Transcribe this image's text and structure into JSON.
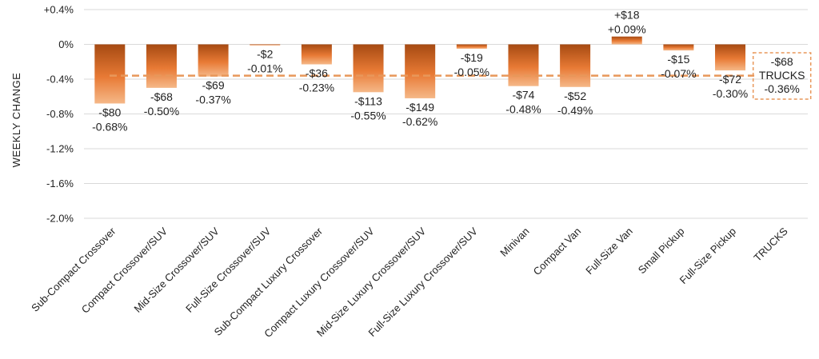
{
  "chart_data": {
    "type": "bar",
    "title": "",
    "xlabel": "",
    "ylabel": "WEEKLY CHANGE",
    "ylim": [
      -2.0,
      0.4
    ],
    "y_ticks": [
      "+0.4%",
      "0%",
      "-0.4%",
      "-0.8%",
      "-1.2%",
      "-1.6%",
      "-2.0%"
    ],
    "grid": true,
    "categories": [
      "Sub-Compact Crossover",
      "Compact Crossover/SUV",
      "Mid-Size Crossover/SUV",
      "Full-Size Crossover/SUV",
      "Sub-Compact Luxury Crossover",
      "Compact Luxury Crossover/SUV",
      "Mid-Size Luxury Crossover/SUV",
      "Full-Size Luxury Crossover/SUV",
      "Minivan",
      "Compact Van",
      "Full-Size Van",
      "Small Pickup",
      "Full-Size Pickup",
      "TRUCKS"
    ],
    "values": [
      -0.68,
      -0.5,
      -0.37,
      -0.01,
      -0.23,
      -0.55,
      -0.62,
      -0.05,
      -0.48,
      -0.49,
      0.09,
      -0.07,
      -0.3,
      -0.36
    ],
    "labels_dollar": [
      "-$80",
      "-$68",
      "-$69",
      "-$2",
      "-$36",
      "-$113",
      "-$149",
      "-$19",
      "-$74",
      "-$52",
      "+$18",
      "-$15",
      "-$72",
      "-$68"
    ],
    "labels_pct": [
      "-0.68%",
      "-0.50%",
      "-0.37%",
      "-0.01%",
      "-0.23%",
      "-0.55%",
      "-0.62%",
      "-0.05%",
      "-0.48%",
      "-0.49%",
      "+0.09%",
      "-0.07%",
      "-0.30%",
      "-0.36%"
    ],
    "summary": {
      "category": "TRUCKS",
      "value": -0.36,
      "label_dollar": "-$68",
      "label_name": "TRUCKS",
      "label_pct": "-0.36%",
      "style": "dashed reference line"
    },
    "colors": {
      "bar_top": "#A64A12",
      "bar_mid": "#E87A35",
      "bar_bottom": "#F5B888",
      "reference": "#E8975A",
      "grid": "#D9D9D9"
    }
  }
}
